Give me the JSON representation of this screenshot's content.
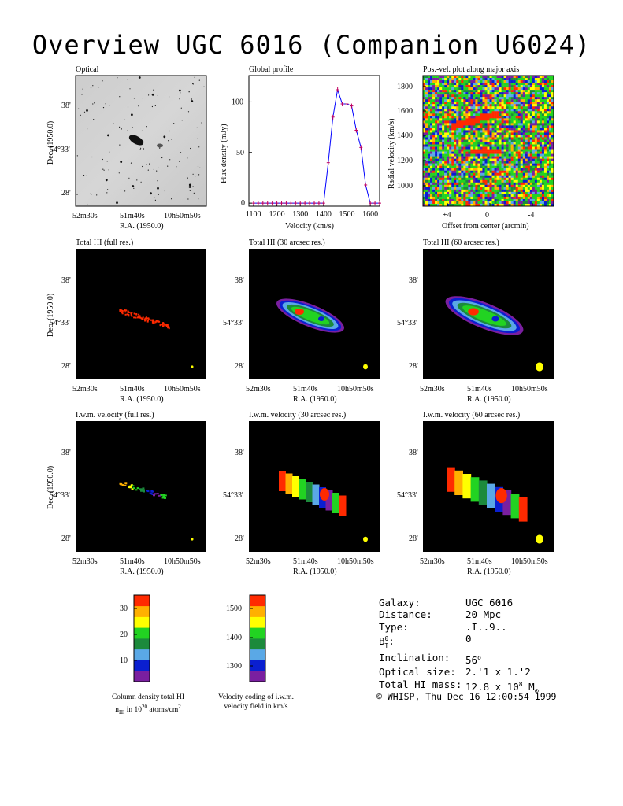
{
  "title": "Overview UGC 6016 (Companion U6024)",
  "axes": {
    "ra_label": "R.A. (1950.0)",
    "dec_label": "Dec. (1950.0)",
    "ra_ticks": [
      "52m30s",
      "51m40s",
      "10h50m50s"
    ],
    "dec_ticks": [
      "38'",
      "54°33'",
      "28'"
    ]
  },
  "panels": {
    "optical": "Optical",
    "global": "Global profile",
    "pv": "Pos.-vel. plot along major axis",
    "hi_full": "Total HI (full res.)",
    "hi_30": "Total HI (30 arcsec res.)",
    "hi_60": "Total HI (60 arcsec res.)",
    "vel_full": "I.w.m. velocity (full res.)",
    "vel_30": "I.w.m. velocity (30 arcsec res.)",
    "vel_60": "I.w.m. velocity (60 arcsec res.)"
  },
  "chart_data": [
    {
      "type": "line",
      "title": "Global profile",
      "xlabel": "Velocity (km/s)",
      "ylabel": "Flux density (mJy)",
      "xlim": [
        1080,
        1640
      ],
      "ylim": [
        -3,
        126
      ],
      "xticks": [
        1100,
        1200,
        1300,
        1400,
        1500,
        1600
      ],
      "yticks": [
        0,
        50,
        100
      ],
      "x": [
        1100,
        1120,
        1140,
        1160,
        1180,
        1200,
        1220,
        1240,
        1260,
        1280,
        1300,
        1320,
        1340,
        1360,
        1380,
        1400,
        1420,
        1440,
        1460,
        1480,
        1500,
        1520,
        1540,
        1560,
        1580,
        1600,
        1620,
        1640
      ],
      "y": [
        0,
        0,
        0,
        0,
        0,
        0,
        0,
        0,
        0,
        0,
        0,
        0,
        0,
        0,
        0,
        0,
        40,
        85,
        112,
        98,
        98,
        96,
        72,
        55,
        18,
        0,
        0,
        0
      ]
    },
    {
      "type": "heatmap",
      "title": "Pos.-vel. plot along major axis",
      "xlabel": "Offset from center (arcmin)",
      "ylabel": "Radial velocity (km/s)",
      "xticks": [
        "+4",
        "0",
        "-4"
      ],
      "yticks": [
        1000,
        1200,
        1400,
        1600,
        1800
      ]
    },
    {
      "type": "heatmap",
      "title": "Column density total HI",
      "colorbar_ticks": [
        10,
        20,
        30
      ]
    },
    {
      "type": "heatmap",
      "title": "Velocity coding of i.w.m. velocity field in km/s",
      "colorbar_ticks": [
        1300,
        1400,
        1500
      ]
    }
  ],
  "colorbar_palette": [
    "#7a1fa0",
    "#0a1fd0",
    "#5aa8e6",
    "#1c8a3c",
    "#22d322",
    "#ffff00",
    "#ffb000",
    "#ff2a00"
  ],
  "captions": {
    "density_1": "Column density total HI",
    "density_2": "n",
    "density_2_sub": "HI",
    "density_2b": " in 10",
    "density_2_sup": "20",
    "density_2c": " atoms/cm",
    "density_2_sup2": "2",
    "velocity_1": "Velocity coding of i.w.m.",
    "velocity_2": "velocity field in km/s"
  },
  "info": {
    "galaxy_k": "Galaxy:",
    "galaxy_v": "UGC 6016",
    "distance_k": "Distance:",
    "distance_v": "20 Mpc",
    "type_k": "Type:",
    "type_v": ".I..9..",
    "bt_k": "B",
    "bt_sup": "0",
    "bt_sub": "T",
    "bt_colon": ":",
    "bt_v": "0",
    "incl_k": "Inclination:",
    "incl_v": "56",
    "incl_deg": "o",
    "size_k": "Optical size:",
    "size_v": "2.'1 x 1.'2",
    "mass_k": "Total HI mass:",
    "mass_v": "12.8 x 10",
    "mass_sup": "8",
    "mass_unit": " M",
    "mass_sun": "⊙"
  },
  "footer": "© WHISP, Thu Dec 16 12:00:54 1999"
}
